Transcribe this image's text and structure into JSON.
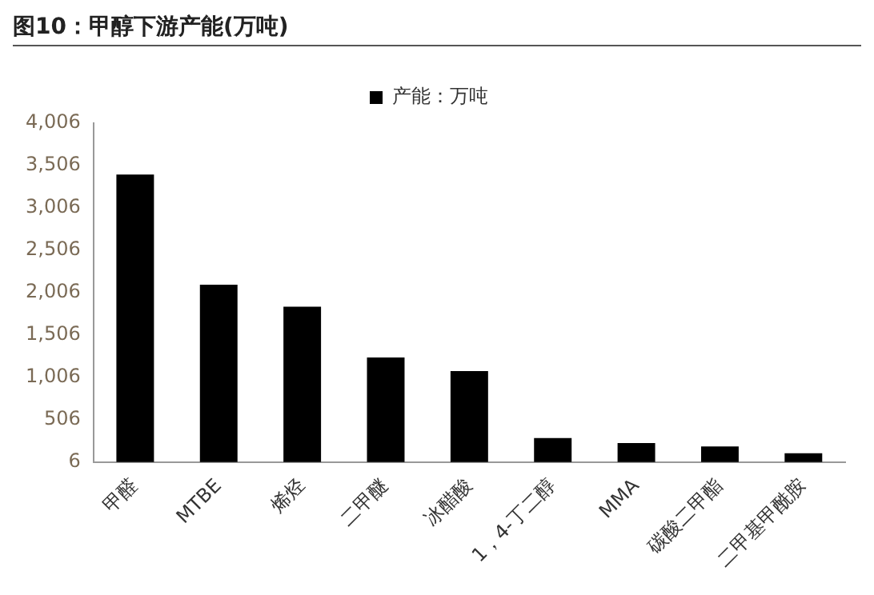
{
  "chart_data": {
    "type": "bar",
    "title": "图10：甲醇下游产能(万吨)",
    "categories": [
      "甲醛",
      "MTBE",
      "烯烃",
      "二甲醚",
      "冰醋酸",
      "1，4-丁二醇",
      "MMA",
      "碳酸二甲酯",
      "二甲基甲酰胺"
    ],
    "series": [
      {
        "name": "产能：万吨",
        "color": "#000000",
        "values": [
          3400,
          2100,
          1840,
          1240,
          1080,
          290,
          230,
          190,
          110
        ]
      }
    ],
    "ylim": [
      6,
      4006
    ],
    "yticks": [
      6,
      506,
      {
        "value": 1006,
        "label": "1,006"
      },
      {
        "value": 1506,
        "label": "1,506"
      },
      {
        "value": 2006,
        "label": "2,006"
      },
      {
        "value": 2506,
        "label": "2,506"
      },
      {
        "value": 3006,
        "label": "3,006"
      },
      {
        "value": 3506,
        "label": "3,506"
      },
      {
        "value": 4006,
        "label": "4,006"
      }
    ],
    "grid": false,
    "legend": "top"
  }
}
